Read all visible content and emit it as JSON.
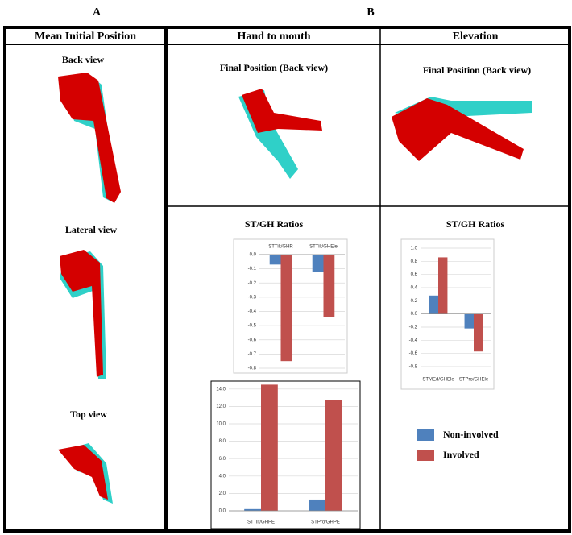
{
  "panel_labels": [
    "A",
    "B"
  ],
  "headers": [
    "Mean Initial Position",
    "Hand to mouth",
    "Elevation"
  ],
  "views": [
    "Back view",
    "Lateral view",
    "Top view"
  ],
  "final_titles": [
    "Final Position (Back view)",
    "Final Position (Back view)"
  ],
  "chart_data": [
    {
      "type": "bar",
      "title": "ST/GH Ratios",
      "categories": [
        "STTilt/GHR",
        "STTilt/GHEle"
      ],
      "series": [
        {
          "color": "#4f81bd",
          "values": [
            -0.07,
            -0.12
          ]
        },
        {
          "color": "#c0504d",
          "values": [
            -0.75,
            -0.44
          ]
        }
      ],
      "ylim": [
        -0.8,
        0
      ],
      "yticks": [
        {
          "value": 0,
          "label": "0.0"
        },
        -0.1,
        -0.2,
        -0.3,
        -0.4,
        -0.5,
        -0.6,
        -0.7,
        -0.8
      ],
      "grid": true
    },
    {
      "type": "bar",
      "categories": [
        "STTilt/GHPE",
        "STPro/GHPE"
      ],
      "series": [
        {
          "color": "#4f81bd",
          "values": [
            0.2,
            1.3
          ]
        },
        {
          "color": "#c0504d",
          "values": [
            14.5,
            12.7
          ]
        }
      ],
      "ylim": [
        0,
        15
      ],
      "yticks": [
        {
          "value": 0,
          "label": "0.0"
        },
        {
          "value": 2,
          "label": "2.0"
        },
        {
          "value": 4,
          "label": "4.0"
        },
        {
          "value": 6,
          "label": "6.0"
        },
        {
          "value": 8,
          "label": "8.0"
        },
        {
          "value": 10,
          "label": "10.0"
        },
        {
          "value": 12,
          "label": "12.0"
        },
        {
          "value": 14,
          "label": "14.0"
        }
      ],
      "grid": true
    },
    {
      "type": "bar",
      "title": "ST/GH Ratios",
      "categories": [
        "STMEd/GHEle",
        "STPro/GHEle"
      ],
      "series": [
        {
          "name": "Non-involved",
          "color": "#4f81bd",
          "values": [
            0.28,
            -0.22
          ]
        },
        {
          "name": "Involved",
          "color": "#c0504d",
          "values": [
            0.86,
            -0.57
          ]
        }
      ],
      "ylim": [
        -0.8,
        1.0
      ],
      "yticks": [
        {
          "value": 1.0,
          "label": "1.0"
        },
        0.8,
        0.6,
        0.4,
        0.2,
        {
          "value": 0,
          "label": "0.0"
        },
        -0.2,
        -0.4,
        -0.6,
        -0.8
      ],
      "grid": true
    }
  ]
}
